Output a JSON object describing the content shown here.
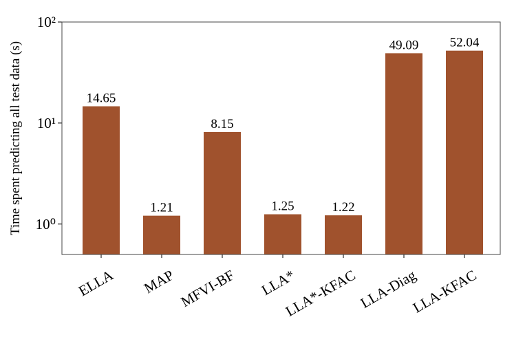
{
  "chart_data": {
    "type": "bar",
    "y_label": "Time spent predicting all test data (s)",
    "categories": [
      "ELLA",
      "MAP",
      "MFVI-BF",
      "LLA*",
      "LLA*-KFAC",
      "LLA-Diag",
      "LLA-KFAC"
    ],
    "values": [
      14.65,
      1.21,
      8.15,
      1.25,
      1.22,
      49.09,
      52.04
    ],
    "color": "#a0522d",
    "log_scale": true,
    "ylim": [
      0.5,
      100
    ],
    "yticks": [
      {
        "value": 1,
        "label": "10⁰"
      },
      {
        "value": 10,
        "label": "10¹"
      },
      {
        "value": 100,
        "label": "10²"
      }
    ]
  }
}
